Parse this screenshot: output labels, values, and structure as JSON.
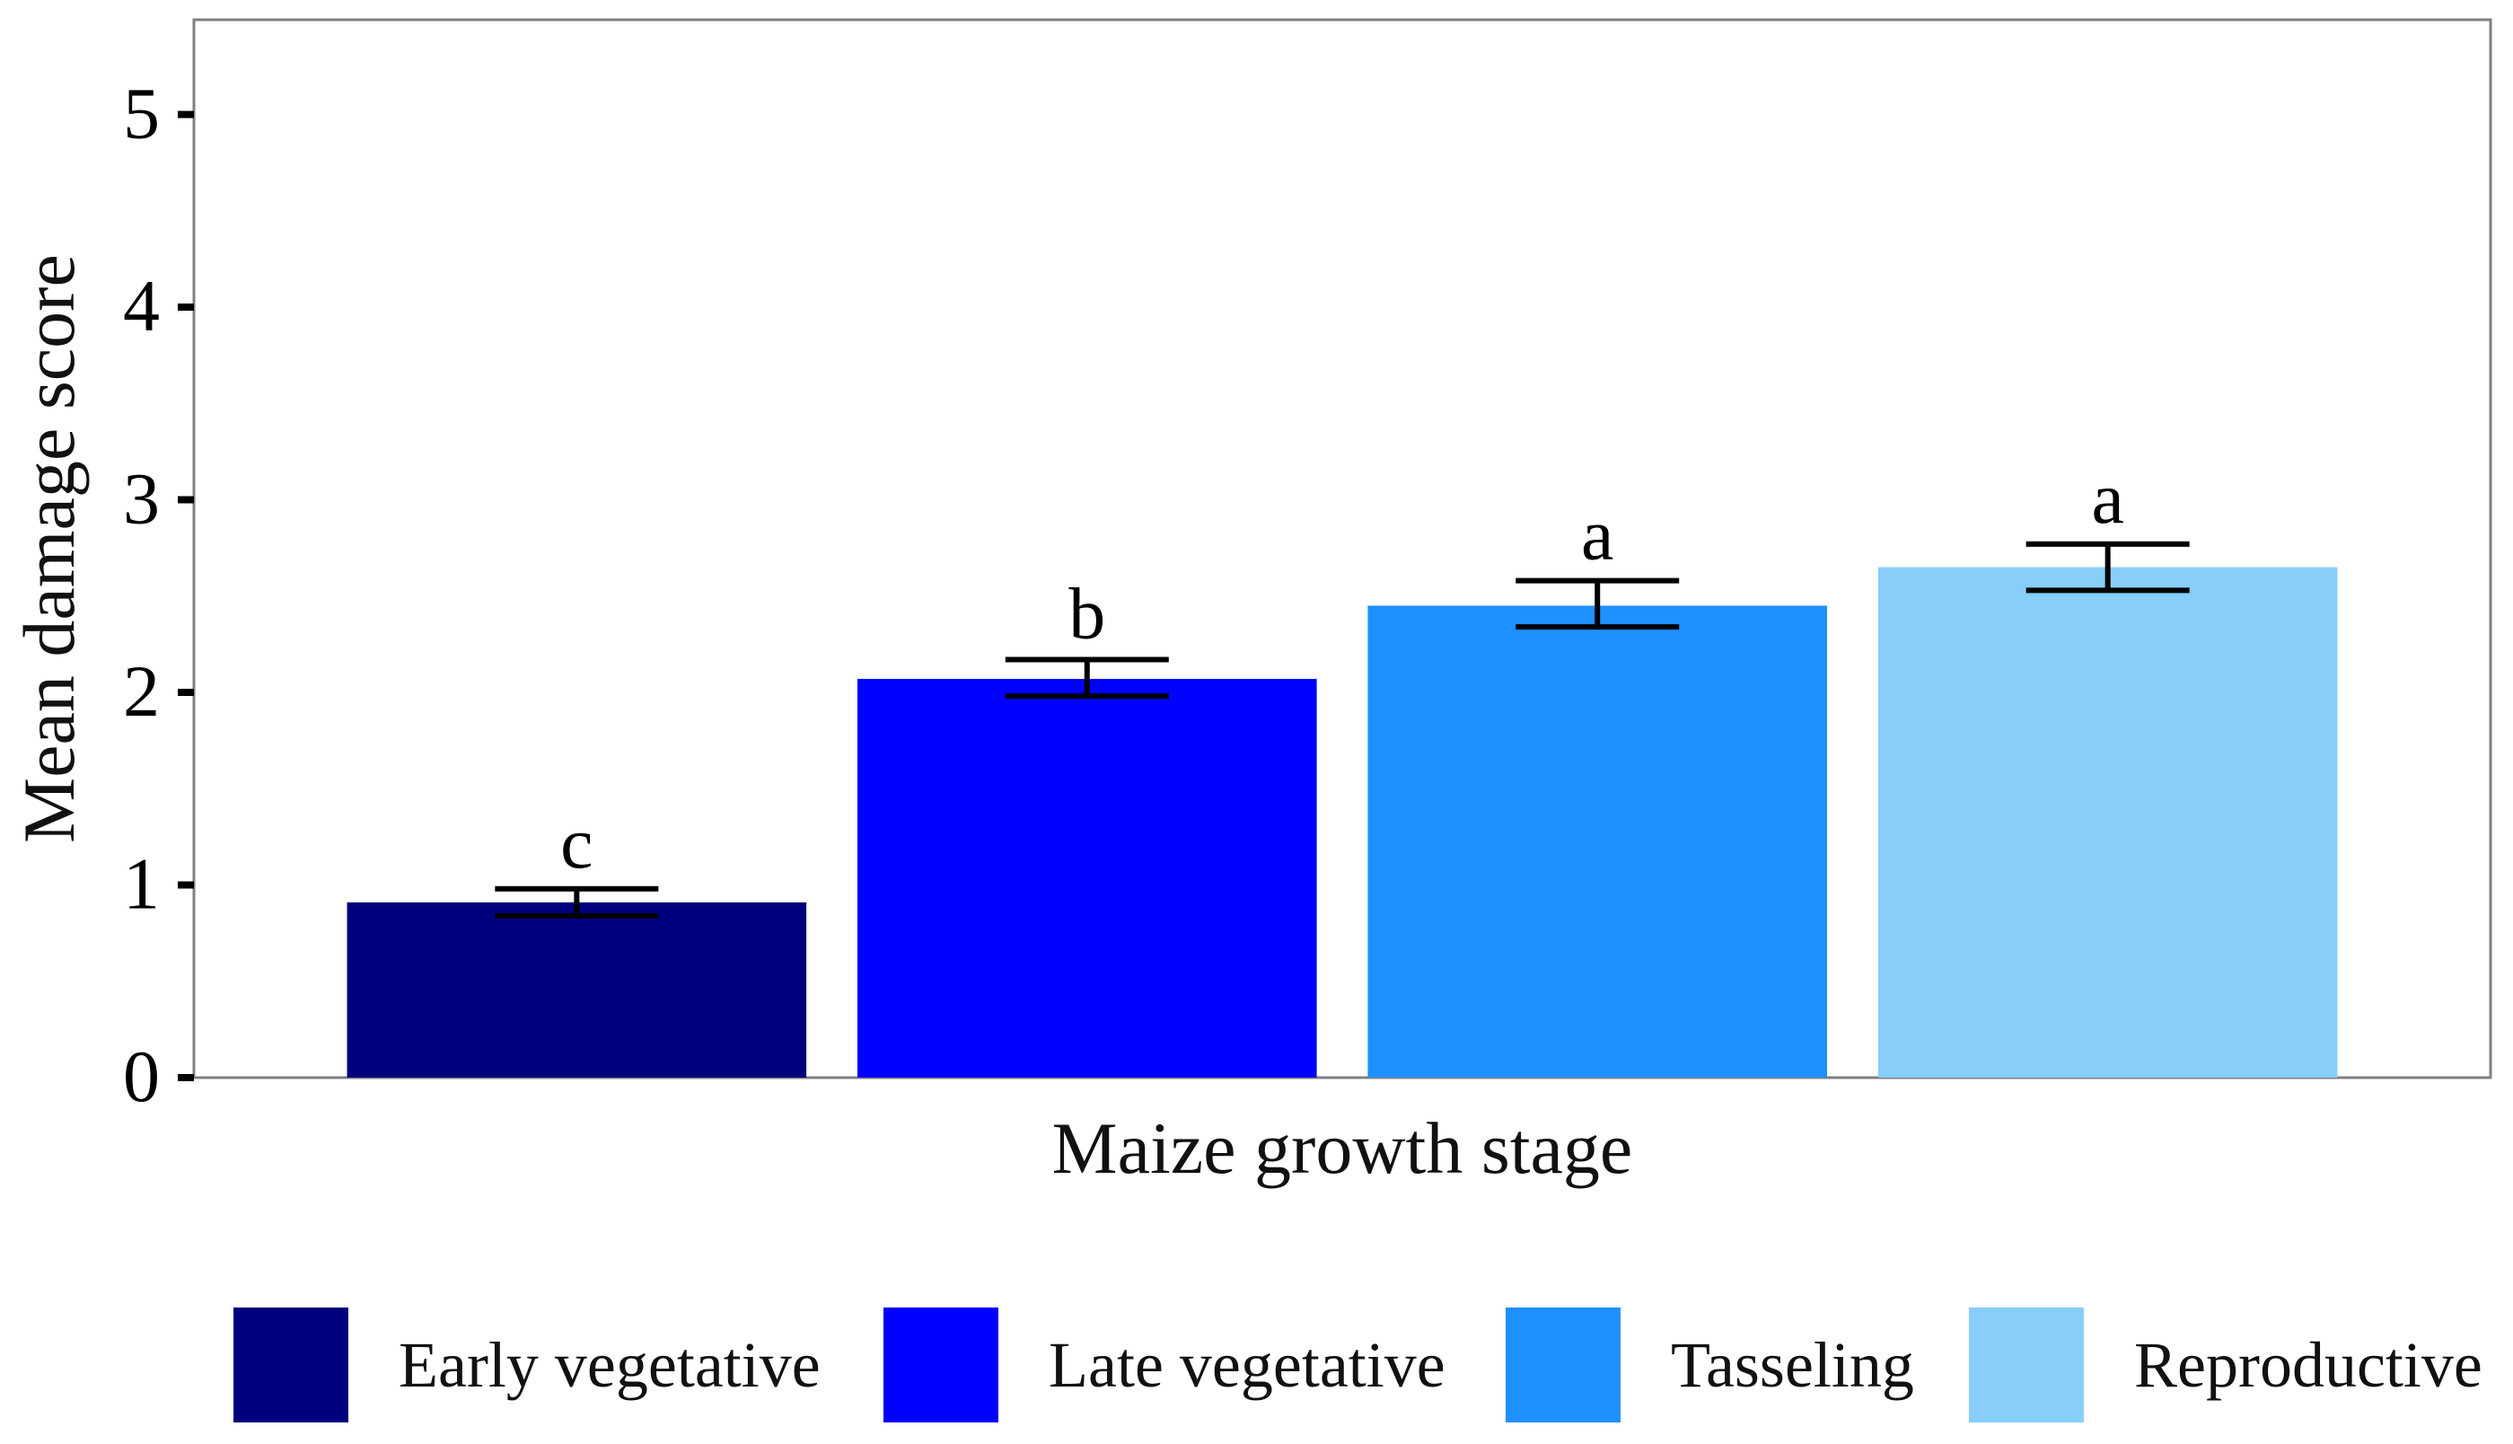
{
  "chart_data": {
    "type": "bar",
    "title": "",
    "xlabel": "Maize growth stage",
    "ylabel": "Mean damage score",
    "ylim": [
      0,
      5.5
    ],
    "yticks": [
      0,
      1,
      2,
      3,
      4,
      5
    ],
    "categories": [
      "Early vegetative",
      "Late vegetative",
      "Tasseling",
      "Reproductive"
    ],
    "values": [
      0.91,
      2.07,
      2.45,
      2.65
    ],
    "error_low": [
      0.84,
      1.98,
      2.34,
      2.53
    ],
    "error_high": [
      0.98,
      2.17,
      2.58,
      2.77
    ],
    "significance_letters": [
      "c",
      "b",
      "a",
      "a"
    ],
    "colors": [
      "#00007F",
      "#0000FF",
      "#1E90FF",
      "#87CEFA"
    ],
    "legend": {
      "position": "bottom",
      "entries": [
        "Early vegetative",
        "Late vegetative",
        "Tasseling",
        "Reproductive"
      ]
    },
    "grid": false
  }
}
